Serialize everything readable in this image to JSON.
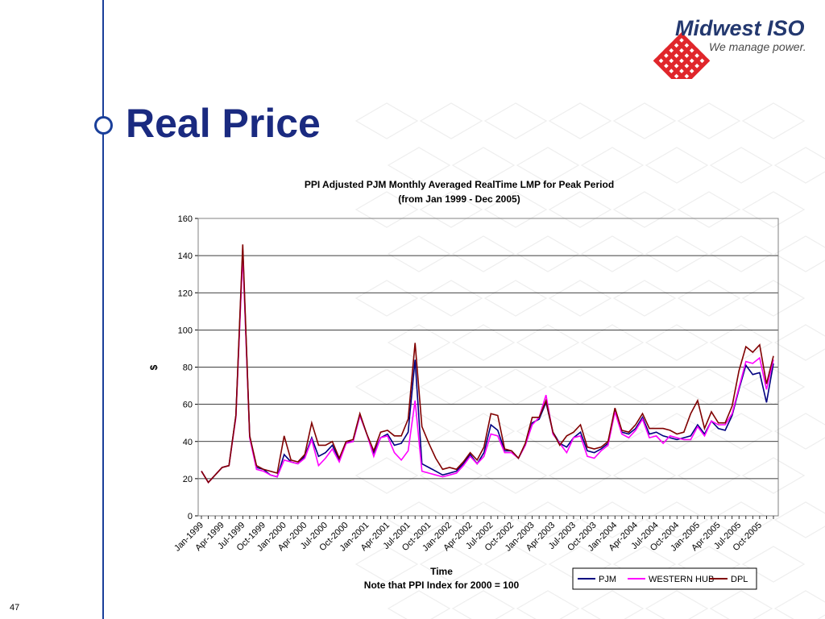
{
  "slide": {
    "title": "Real Price",
    "page_number": "47"
  },
  "logo": {
    "name": "Midwest ISO",
    "tagline": "We manage power."
  },
  "colors": {
    "accent_blue": "#1a3f9a",
    "title_color": "#1a2a80",
    "logo_red": "#e0262b"
  },
  "chart_data": {
    "type": "line",
    "title": "PPI Adjusted PJM  Monthly Averaged RealTime LMP for Peak Period",
    "subtitle": "(from Jan 1999 - Dec 2005)",
    "xlabel": "Time",
    "note": "Note that PPI Index for 2000 = 100",
    "ylabel": "$",
    "ylim": [
      0,
      160
    ],
    "yticks": [
      0,
      20,
      40,
      60,
      80,
      100,
      120,
      140,
      160
    ],
    "grid": true,
    "legend_position": "bottom-right",
    "x_tick_labels": [
      "Jan-1999",
      "Apr-1999",
      "Jul-1999",
      "Oct-1999",
      "Jan-2000",
      "Apr-2000",
      "Jul-2000",
      "Oct-2000",
      "Jan-2001",
      "Apr-2001",
      "Jul-2001",
      "Oct-2001",
      "Jan-2002",
      "Apr-2002",
      "Jul-2002",
      "Oct-2002",
      "Jan-2003",
      "Apr-2003",
      "Jul-2003",
      "Oct-2003",
      "Jan-2004",
      "Apr-2004",
      "Jul-2004",
      "Oct-2004",
      "Jan-2005",
      "Apr-2005",
      "Jul-2005",
      "Oct-2005"
    ],
    "x": [
      "Jan-1999",
      "Feb-1999",
      "Mar-1999",
      "Apr-1999",
      "May-1999",
      "Jun-1999",
      "Jul-1999",
      "Aug-1999",
      "Sep-1999",
      "Oct-1999",
      "Nov-1999",
      "Dec-1999",
      "Jan-2000",
      "Feb-2000",
      "Mar-2000",
      "Apr-2000",
      "May-2000",
      "Jun-2000",
      "Jul-2000",
      "Aug-2000",
      "Sep-2000",
      "Oct-2000",
      "Nov-2000",
      "Dec-2000",
      "Jan-2001",
      "Feb-2001",
      "Mar-2001",
      "Apr-2001",
      "May-2001",
      "Jun-2001",
      "Jul-2001",
      "Aug-2001",
      "Sep-2001",
      "Oct-2001",
      "Nov-2001",
      "Dec-2001",
      "Jan-2002",
      "Feb-2002",
      "Mar-2002",
      "Apr-2002",
      "May-2002",
      "Jun-2002",
      "Jul-2002",
      "Aug-2002",
      "Sep-2002",
      "Oct-2002",
      "Nov-2002",
      "Dec-2002",
      "Jan-2003",
      "Feb-2003",
      "Mar-2003",
      "Apr-2003",
      "May-2003",
      "Jun-2003",
      "Jul-2003",
      "Aug-2003",
      "Sep-2003",
      "Oct-2003",
      "Nov-2003",
      "Dec-2003",
      "Jan-2004",
      "Feb-2004",
      "Mar-2004",
      "Apr-2004",
      "May-2004",
      "Jun-2004",
      "Jul-2004",
      "Aug-2004",
      "Sep-2004",
      "Oct-2004",
      "Nov-2004",
      "Dec-2004",
      "Jan-2005",
      "Feb-2005",
      "Mar-2005",
      "Apr-2005",
      "May-2005",
      "Jun-2005",
      "Jul-2005",
      "Aug-2005",
      "Sep-2005",
      "Oct-2005",
      "Nov-2005",
      "Dec-2005"
    ],
    "series": [
      {
        "name": "PJM",
        "color": "#000080",
        "values": [
          24,
          18,
          22,
          26,
          27,
          54,
          143,
          43,
          26,
          25,
          22,
          21,
          33,
          29,
          28,
          32,
          42,
          32,
          34,
          38,
          30,
          40,
          40,
          54,
          44,
          34,
          42,
          44,
          38,
          39,
          45,
          84,
          28,
          26,
          24,
          22,
          23,
          24,
          28,
          33,
          28,
          34,
          49,
          46,
          35,
          35,
          31,
          38,
          50,
          52,
          61,
          45,
          39,
          37,
          42,
          45,
          35,
          34,
          36,
          39,
          57,
          45,
          44,
          47,
          53,
          44,
          45,
          43,
          42,
          41,
          42,
          43,
          49,
          44,
          51,
          47,
          46,
          54,
          68,
          81,
          76,
          77,
          61,
          82
        ]
      },
      {
        "name": "WESTERN HUB",
        "color": "#ff00ff",
        "values": [
          24,
          18,
          22,
          26,
          27,
          53,
          141,
          42,
          25,
          24,
          22,
          21,
          30,
          29,
          28,
          31,
          41,
          27,
          31,
          36,
          29,
          39,
          40,
          54,
          44,
          32,
          42,
          43,
          34,
          30,
          35,
          62,
          24,
          23,
          22,
          21,
          22,
          23,
          27,
          32,
          28,
          32,
          44,
          43,
          34,
          34,
          31,
          38,
          49,
          53,
          65,
          44,
          39,
          34,
          42,
          43,
          32,
          31,
          35,
          38,
          56,
          44,
          42,
          46,
          52,
          42,
          43,
          39,
          43,
          42,
          41,
          41,
          48,
          43,
          51,
          49,
          49,
          55,
          69,
          83,
          82,
          85,
          68,
          84
        ]
      },
      {
        "name": "DPL",
        "color": "#800000",
        "values": [
          24,
          18,
          22,
          26,
          27,
          54,
          146,
          43,
          27,
          25,
          24,
          23,
          43,
          30,
          29,
          33,
          50,
          38,
          38,
          40,
          31,
          40,
          41,
          55,
          44,
          35,
          45,
          46,
          43,
          43,
          52,
          93,
          48,
          39,
          31,
          25,
          26,
          25,
          29,
          34,
          30,
          37,
          55,
          54,
          36,
          35,
          31,
          39,
          53,
          53,
          62,
          45,
          38,
          43,
          45,
          49,
          37,
          36,
          37,
          40,
          58,
          46,
          45,
          49,
          55,
          47,
          47,
          47,
          46,
          44,
          45,
          55,
          62,
          47,
          56,
          50,
          50,
          59,
          78,
          91,
          88,
          92,
          71,
          86
        ]
      }
    ]
  }
}
